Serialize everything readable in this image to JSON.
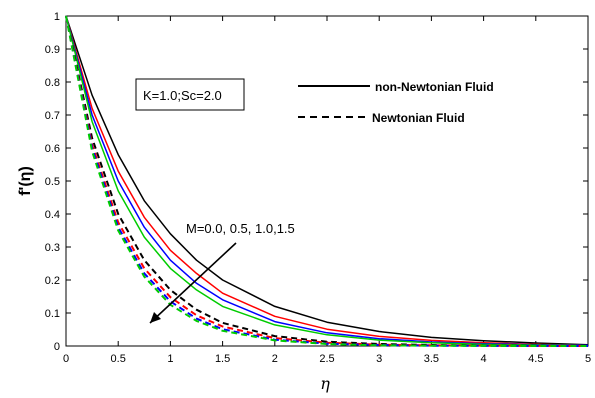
{
  "chart_data": {
    "type": "line",
    "xlabel": "η",
    "ylabel": "f'(η)",
    "xlim": [
      0,
      5
    ],
    "ylim": [
      0,
      1
    ],
    "x_ticks": [
      "0",
      "0.5",
      "1",
      "1.5",
      "2",
      "2.5",
      "3",
      "3.5",
      "4",
      "4.5",
      "5"
    ],
    "y_ticks": [
      "0",
      "0.1",
      "0.2",
      "0.3",
      "0.4",
      "0.5",
      "0.6",
      "0.7",
      "0.8",
      "0.9",
      "1"
    ],
    "grid": false,
    "parameter_box": "K=1.0;Sc=2.0",
    "legend": [
      {
        "label": "non-Newtonian Fluid",
        "style": "solid"
      },
      {
        "label": "Newtonian Fluid",
        "style": "dashed"
      }
    ],
    "annotation": "M=0.0, 0.5, 1.0,1.5",
    "x": [
      0,
      0.25,
      0.5,
      0.75,
      1,
      1.25,
      1.5,
      2,
      2.5,
      3,
      3.5,
      4,
      4.5,
      5
    ],
    "series": [
      {
        "color": "#000000",
        "style": "solid",
        "values": [
          1.0,
          0.76,
          0.58,
          0.44,
          0.34,
          0.26,
          0.2,
          0.12,
          0.072,
          0.044,
          0.026,
          0.016,
          0.009,
          0.004
        ]
      },
      {
        "color": "#ff0000",
        "style": "solid",
        "values": [
          1.0,
          0.72,
          0.53,
          0.39,
          0.29,
          0.22,
          0.16,
          0.09,
          0.051,
          0.029,
          0.017,
          0.01,
          0.005,
          0.002
        ]
      },
      {
        "color": "#0000ff",
        "style": "solid",
        "values": [
          1.0,
          0.7,
          0.5,
          0.36,
          0.26,
          0.19,
          0.14,
          0.074,
          0.04,
          0.022,
          0.012,
          0.007,
          0.004,
          0.002
        ]
      },
      {
        "color": "#00cc00",
        "style": "solid",
        "values": [
          1.0,
          0.68,
          0.47,
          0.33,
          0.235,
          0.17,
          0.12,
          0.064,
          0.034,
          0.018,
          0.01,
          0.005,
          0.003,
          0.001
        ]
      },
      {
        "color": "#000000",
        "style": "dashed",
        "values": [
          1.0,
          0.63,
          0.4,
          0.26,
          0.17,
          0.11,
          0.07,
          0.03,
          0.013,
          0.006,
          0.003,
          0.001,
          0.0005,
          0.0002
        ]
      },
      {
        "color": "#ff0000",
        "style": "dashed",
        "values": [
          1.0,
          0.61,
          0.375,
          0.235,
          0.148,
          0.093,
          0.059,
          0.024,
          0.01,
          0.004,
          0.002,
          0.001,
          0.0004,
          0.0001
        ]
      },
      {
        "color": "#0000ff",
        "style": "dashed",
        "values": [
          1.0,
          0.6,
          0.36,
          0.22,
          0.135,
          0.083,
          0.051,
          0.019,
          0.007,
          0.003,
          0.001,
          0.0005,
          0.0002,
          0.0001
        ]
      },
      {
        "color": "#00cc00",
        "style": "dashed",
        "values": [
          1.0,
          0.59,
          0.35,
          0.21,
          0.125,
          0.076,
          0.046,
          0.017,
          0.006,
          0.002,
          0.001,
          0.0004,
          0.0001,
          0.0
        ]
      }
    ]
  }
}
